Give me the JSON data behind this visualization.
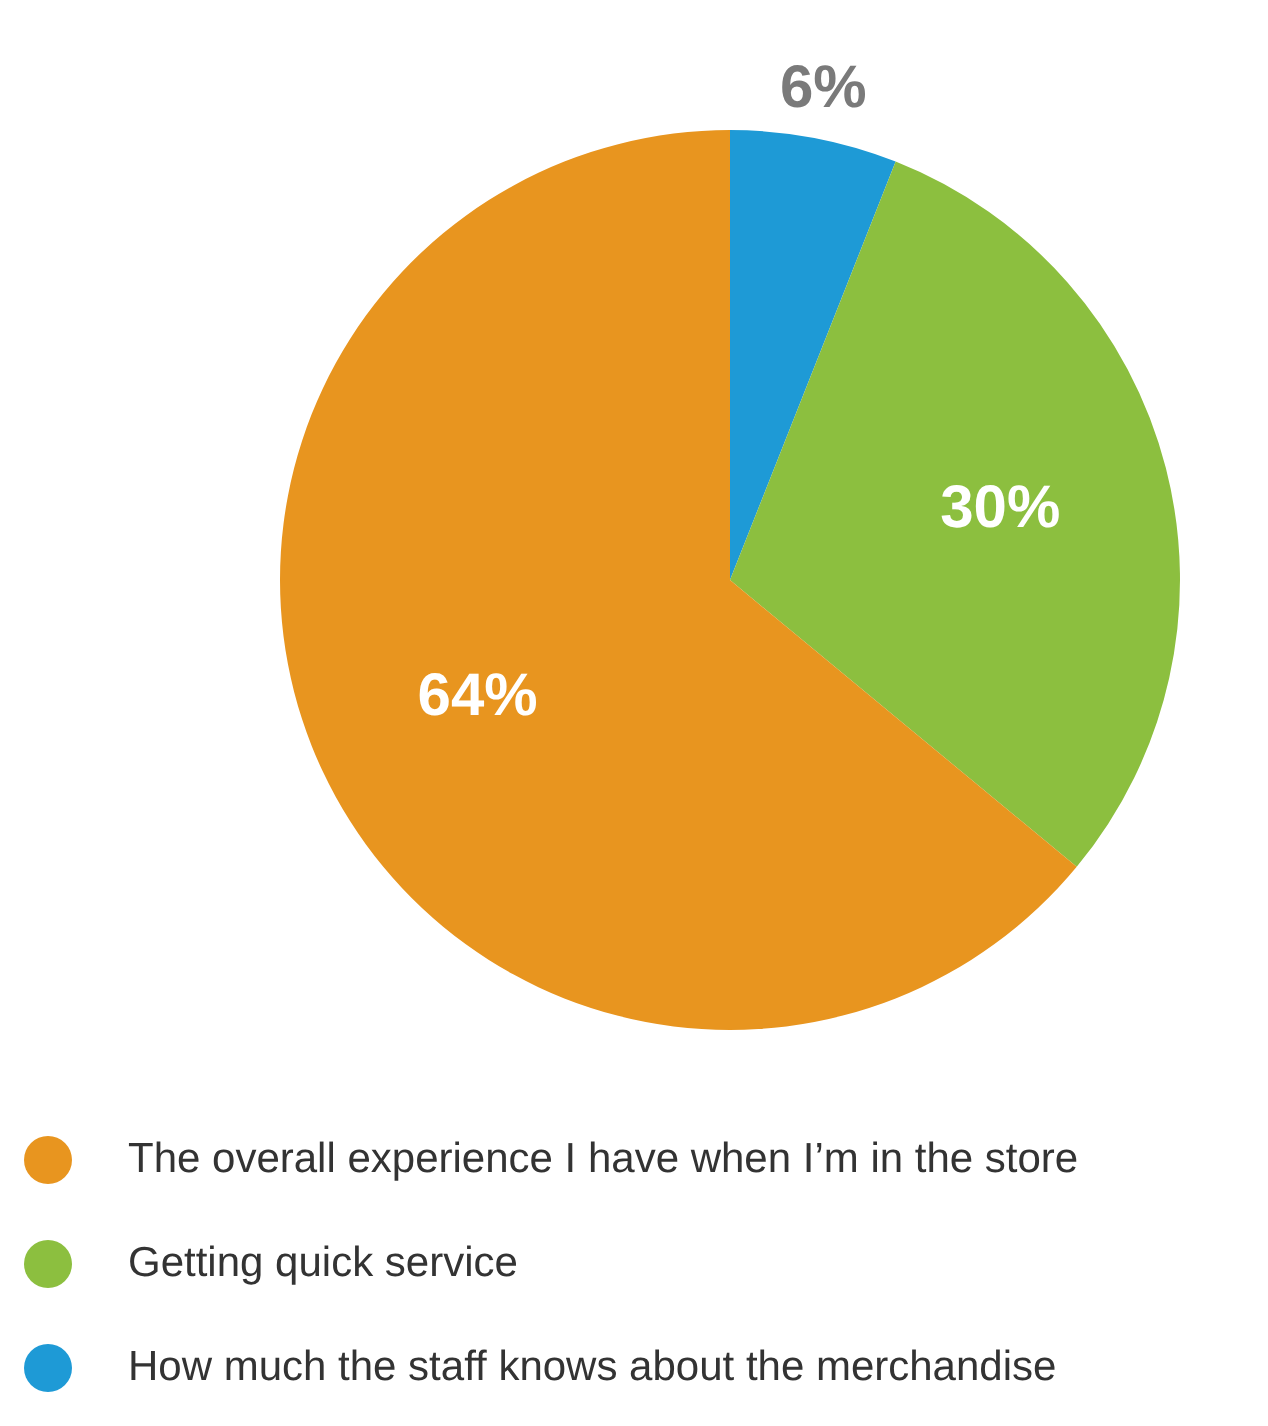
{
  "chart_data": {
    "type": "pie",
    "categories": [
      "How much the staff knows about the merchandise",
      "Getting quick service",
      "The overall experience I have when I’m in the store"
    ],
    "values": [
      6,
      30,
      64
    ],
    "colors": [
      "#1e9ad6",
      "#8cbf3f",
      "#e8951f"
    ],
    "value_labels": [
      "6%",
      "30%",
      "64%"
    ],
    "legend": "bottom"
  }
}
